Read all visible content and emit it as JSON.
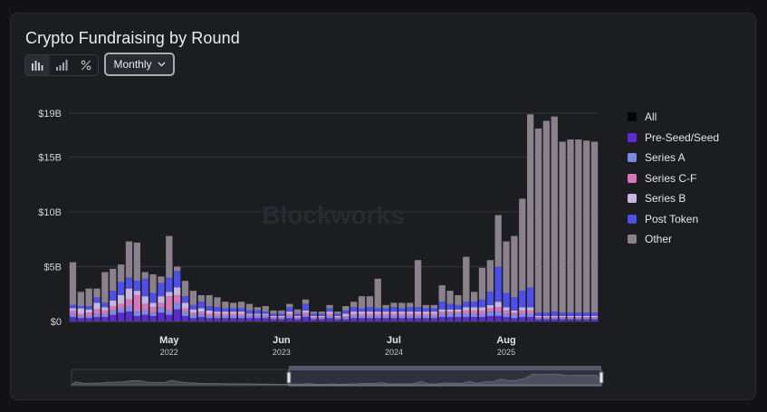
{
  "title": "Crypto Fundraising by Round",
  "toolbar": {
    "modes": [
      {
        "icon": "bar-chart-icon",
        "active": true
      },
      {
        "icon": "signal-bars-icon",
        "active": false
      },
      {
        "icon": "percent-icon",
        "active": false
      }
    ],
    "interval": "Monthly"
  },
  "watermark": "Blockworks",
  "legend": [
    {
      "label": "All",
      "color": "#050505"
    },
    {
      "label": "Pre-Seed/Seed",
      "color": "#5b2ad4"
    },
    {
      "label": "Series A",
      "color": "#7b89e8"
    },
    {
      "label": "Series C-F",
      "color": "#d678b8"
    },
    {
      "label": "Series B",
      "color": "#c8b6e2"
    },
    {
      "label": "Post Token",
      "color": "#4d4fe8"
    },
    {
      "label": "Other",
      "color": "#8a818c"
    }
  ],
  "chart_data": {
    "type": "bar",
    "stacked": true,
    "ylim": [
      0,
      19
    ],
    "yticks": [
      "$0",
      "$5B",
      "$10B",
      "$15B",
      "$19B"
    ],
    "ytick_values": [
      0,
      5,
      10,
      15,
      19
    ],
    "xticks": [
      {
        "index": 12,
        "month": "May",
        "year": "2022"
      },
      {
        "index": 26,
        "month": "Jun",
        "year": "2023"
      },
      {
        "index": 40,
        "month": "Jul",
        "year": "2024"
      },
      {
        "index": 54,
        "month": "Aug",
        "year": "2025"
      }
    ],
    "series": [
      {
        "name": "Pre-Seed/Seed",
        "values": [
          0.4,
          0.3,
          0.3,
          0.4,
          0.4,
          0.6,
          0.8,
          0.9,
          0.5,
          0.6,
          0.5,
          0.8,
          0.6,
          1.1,
          0.5,
          0.3,
          0.4,
          0.3,
          0.3,
          0.3,
          0.3,
          0.3,
          0.3,
          0.3,
          0.3,
          0.2,
          0.2,
          0.3,
          0.2,
          0.4,
          0.2,
          0.2,
          0.3,
          0.2,
          0.2,
          0.3,
          0.3,
          0.3,
          0.3,
          0.3,
          0.3,
          0.3,
          0.3,
          0.3,
          0.3,
          0.3,
          0.4,
          0.4,
          0.4,
          0.4,
          0.4,
          0.4,
          0.5,
          0.5,
          0.4,
          0.3,
          0.4,
          0.4,
          0.2,
          0.2,
          0.2,
          0.2,
          0.2,
          0.2,
          0.2,
          0.2
        ]
      },
      {
        "name": "Series A",
        "values": [
          0.3,
          0.2,
          0.2,
          0.3,
          0.3,
          0.4,
          0.4,
          0.5,
          0.4,
          0.4,
          0.3,
          0.5,
          0.4,
          0.6,
          0.4,
          0.3,
          0.3,
          0.2,
          0.2,
          0.2,
          0.2,
          0.2,
          0.2,
          0.2,
          0.2,
          0.1,
          0.1,
          0.2,
          0.1,
          0.2,
          0.1,
          0.1,
          0.2,
          0.1,
          0.2,
          0.2,
          0.2,
          0.2,
          0.2,
          0.2,
          0.2,
          0.2,
          0.2,
          0.2,
          0.2,
          0.2,
          0.3,
          0.3,
          0.3,
          0.3,
          0.3,
          0.3,
          0.4,
          0.4,
          0.3,
          0.3,
          0.3,
          0.3,
          0.1,
          0.1,
          0.1,
          0.1,
          0.1,
          0.1,
          0.1,
          0.1
        ]
      },
      {
        "name": "Series C-F",
        "values": [
          0.3,
          0.2,
          0.3,
          0.4,
          0.3,
          0.4,
          0.4,
          0.6,
          1.5,
          0.6,
          0.5,
          0.4,
          1.3,
          0.7,
          0.3,
          0.2,
          0.2,
          0.2,
          0.2,
          0.2,
          0.2,
          0.2,
          0.1,
          0.1,
          0.1,
          0.1,
          0.1,
          0.2,
          0.1,
          0.2,
          0.1,
          0.1,
          0.2,
          0.1,
          0.1,
          0.2,
          0.2,
          0.2,
          0.2,
          0.2,
          0.2,
          0.2,
          0.2,
          0.2,
          0.2,
          0.2,
          0.2,
          0.2,
          0.2,
          0.3,
          0.3,
          0.3,
          0.3,
          0.4,
          0.3,
          0.2,
          0.3,
          0.3,
          0.1,
          0.1,
          0.1,
          0.1,
          0.1,
          0.1,
          0.1,
          0.1
        ]
      },
      {
        "name": "Series B",
        "values": [
          0.2,
          0.5,
          0.3,
          0.6,
          0.3,
          0.5,
          0.8,
          1.0,
          0.4,
          0.7,
          0.4,
          0.6,
          0.4,
          0.7,
          0.5,
          0.3,
          0.3,
          0.3,
          0.2,
          0.2,
          0.2,
          0.2,
          0.1,
          0.1,
          0.1,
          0.1,
          0.1,
          0.2,
          0.1,
          0.2,
          0.1,
          0.1,
          0.2,
          0.1,
          0.2,
          0.2,
          0.2,
          0.2,
          0.2,
          0.2,
          0.2,
          0.2,
          0.2,
          0.2,
          0.2,
          0.2,
          0.2,
          0.2,
          0.2,
          0.3,
          0.3,
          0.3,
          0.3,
          0.5,
          0.3,
          0.2,
          0.3,
          0.3,
          0.1,
          0.1,
          0.1,
          0.1,
          0.1,
          0.1,
          0.1,
          0.1
        ]
      },
      {
        "name": "Post Token",
        "values": [
          0.3,
          0.2,
          0.3,
          0.5,
          0.4,
          0.9,
          1.2,
          1.0,
          0.9,
          1.6,
          0.9,
          1.2,
          1.3,
          1.5,
          0.6,
          0.4,
          0.6,
          0.4,
          0.4,
          0.3,
          0.3,
          0.3,
          0.3,
          0.3,
          0.2,
          0.2,
          0.2,
          0.4,
          0.2,
          0.6,
          0.2,
          0.2,
          0.3,
          0.2,
          0.3,
          0.4,
          0.3,
          0.4,
          0.3,
          0.3,
          0.4,
          0.3,
          0.4,
          0.4,
          0.3,
          0.3,
          0.7,
          0.5,
          0.4,
          0.5,
          0.5,
          0.7,
          1.2,
          3.2,
          1.3,
          1.2,
          1.5,
          1.8,
          0.3,
          0.3,
          0.4,
          0.3,
          0.3,
          0.3,
          0.3,
          0.3
        ]
      },
      {
        "name": "Other",
        "values": [
          3.9,
          1.3,
          1.6,
          0.8,
          2.8,
          2.0,
          1.6,
          3.3,
          3.5,
          0.6,
          1.7,
          0.6,
          3.8,
          0.4,
          1.4,
          1.3,
          0.6,
          1.0,
          0.9,
          0.6,
          0.5,
          0.6,
          0.6,
          0.3,
          0.5,
          0.3,
          0.3,
          0.3,
          0.4,
          0.4,
          0.2,
          0.2,
          0.3,
          0.2,
          0.4,
          0.5,
          1.1,
          1.0,
          2.7,
          0.3,
          0.4,
          0.5,
          0.4,
          4.3,
          0.3,
          0.3,
          1.5,
          1.2,
          0.9,
          4.1,
          0.9,
          2.9,
          2.9,
          4.7,
          4.7,
          5.6,
          8.4,
          15.8,
          16.8,
          17.5,
          17.8,
          15.6,
          15.8,
          15.8,
          15.7,
          15.6
        ]
      }
    ]
  }
}
